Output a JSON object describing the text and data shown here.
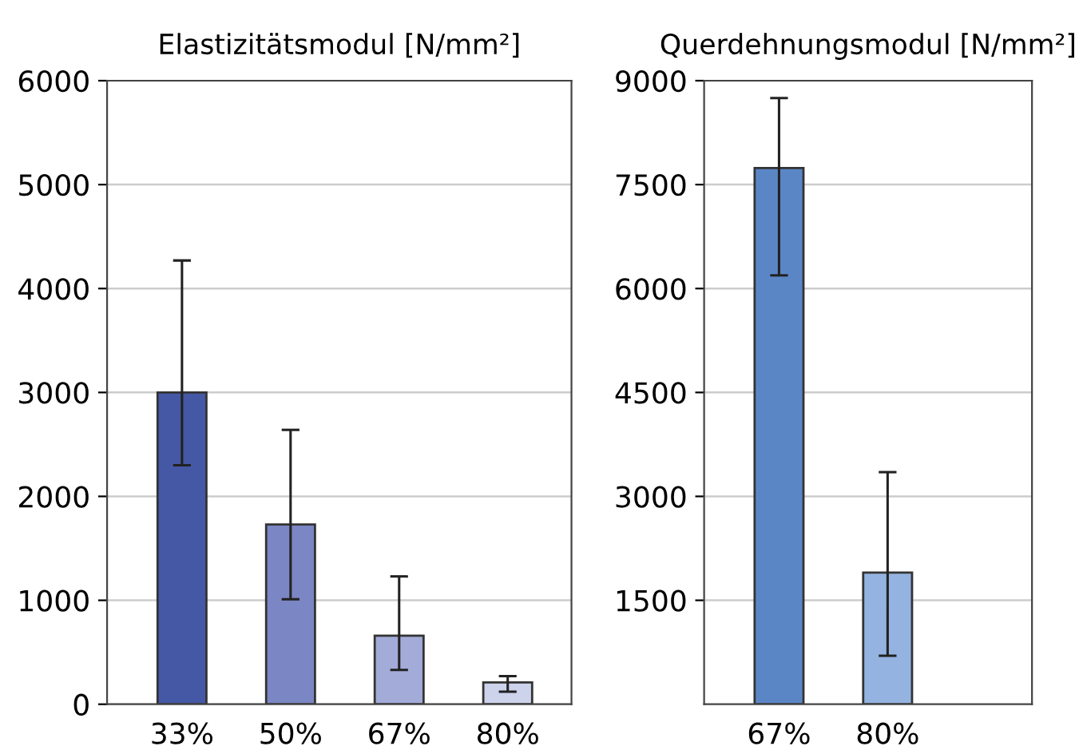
{
  "chart_data": [
    {
      "type": "bar",
      "title": "Elastizitätsmodul [N/mm²]",
      "categories": [
        "33%",
        "50%",
        "67%",
        "80%"
      ],
      "values": [
        3000,
        1730,
        660,
        210
      ],
      "colors": [
        "#4558a6",
        "#7b86c4",
        "#a3abd8",
        "#ced3ec"
      ],
      "errors": [
        [
          2300,
          4270
        ],
        [
          1010,
          2640
        ],
        [
          330,
          1230
        ],
        [
          120,
          270
        ]
      ],
      "ylim": [
        0,
        6000
      ],
      "yticks": [
        0,
        1000,
        2000,
        3000,
        4000,
        5000,
        6000
      ],
      "grid": "y"
    },
    {
      "type": "bar",
      "title": "Querdehnungsmodul [N/mm²]",
      "categories": [
        "67%",
        "80%"
      ],
      "values": [
        7740,
        1900
      ],
      "colors": [
        "#5b86c6",
        "#94b3e0"
      ],
      "errors": [
        [
          6190,
          8750
        ],
        [
          700,
          3350
        ]
      ],
      "ylim": [
        0,
        9000
      ],
      "yticks": [
        1500,
        3000,
        4500,
        6000,
        7500,
        9000
      ],
      "grid": "y"
    }
  ]
}
